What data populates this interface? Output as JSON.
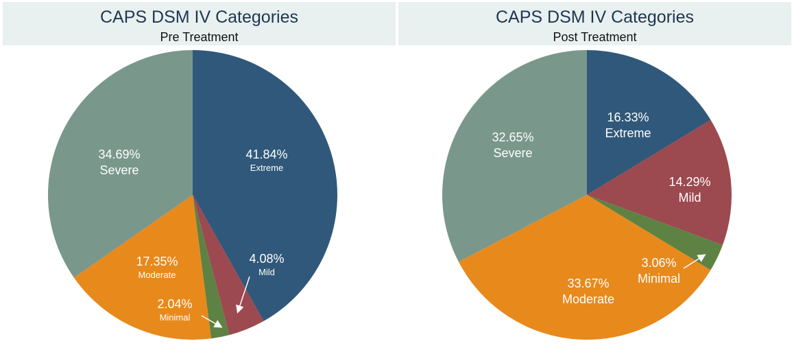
{
  "chart_data": [
    {
      "type": "pie",
      "title": "CAPS DSM IV Categories",
      "subtitle": "Pre Treatment",
      "slices": [
        {
          "name": "Extreme",
          "percent_label": "41.84%",
          "value": 41.84,
          "color": "#30587a"
        },
        {
          "name": "Mild",
          "percent_label": "4.08%",
          "value": 4.08,
          "color": "#9c4950"
        },
        {
          "name": "Minimal",
          "percent_label": "2.04%",
          "value": 2.04,
          "color": "#5e8244"
        },
        {
          "name": "Moderate",
          "percent_label": "17.35%",
          "value": 17.35,
          "color": "#e8891c"
        },
        {
          "name": "Severe",
          "percent_label": "34.69%",
          "value": 34.69,
          "color": "#7a978c"
        }
      ]
    },
    {
      "type": "pie",
      "title": "CAPS DSM IV Categories",
      "subtitle": "Post Treatment",
      "slices": [
        {
          "name": "Extreme",
          "percent_label": "16.33%",
          "value": 16.33,
          "color": "#30587a"
        },
        {
          "name": "Mild",
          "percent_label": "14.29%",
          "value": 14.29,
          "color": "#9c4950"
        },
        {
          "name": "Minimal",
          "percent_label": "3.06%",
          "value": 3.06,
          "color": "#5e8244"
        },
        {
          "name": "Moderate",
          "percent_label": "33.67%",
          "value": 33.67,
          "color": "#e8891c"
        },
        {
          "name": "Severe",
          "percent_label": "32.65%",
          "value": 32.65,
          "color": "#7a978c"
        }
      ]
    }
  ]
}
